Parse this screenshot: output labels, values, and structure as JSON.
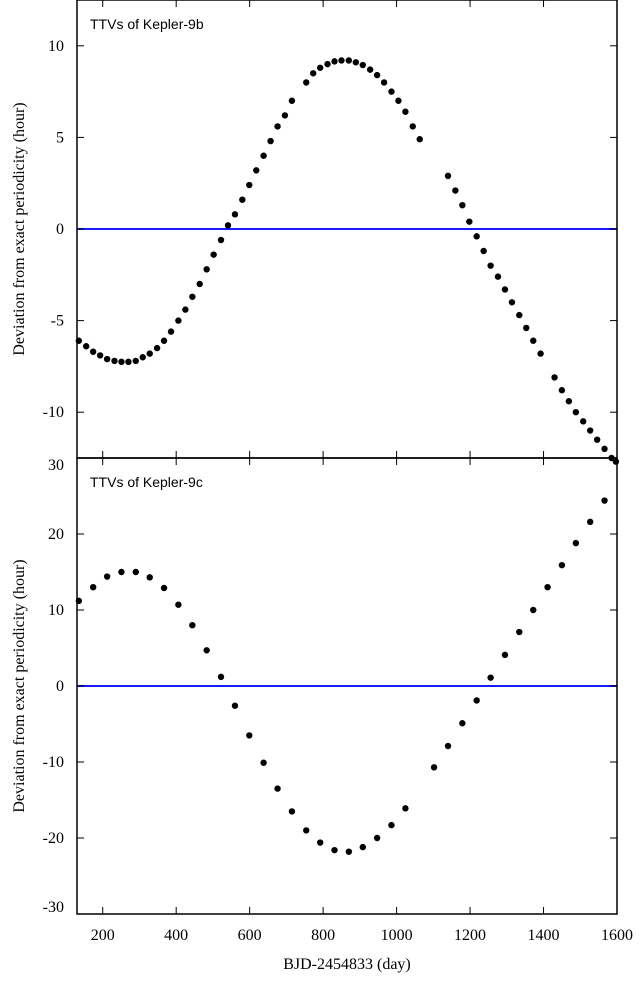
{
  "chart_data": {
    "type": "scatter",
    "xlabel": "BJD-2454833 (day)",
    "xlim": [
      130,
      1600
    ],
    "xticks": [
      200,
      400,
      600,
      800,
      1000,
      1200,
      1400,
      1600
    ],
    "panels": [
      {
        "title": "TTVs of Kepler-9b",
        "ylabel": "Deviation from exact periodicity (hour)",
        "ylim": [
          -12.5,
          12.5
        ],
        "yticks": [
          -10,
          -5,
          0,
          5,
          10
        ],
        "ytick_labels": [
          "-10",
          "-5",
          "0",
          "5",
          "10"
        ],
        "reference_line": 0,
        "reference_color": "#1a1aff",
        "marker_color": "#000000",
        "x": [
          135,
          155,
          174,
          193,
          212,
          232,
          251,
          270,
          290,
          309,
          328,
          348,
          367,
          386,
          406,
          425,
          444,
          464,
          483,
          502,
          522,
          541,
          560,
          580,
          599,
          618,
          638,
          657,
          676,
          696,
          715,
          754,
          773,
          792,
          812,
          831,
          850,
          870,
          889,
          908,
          928,
          947,
          966,
          986,
          1005,
          1024,
          1044,
          1063,
          1140,
          1160,
          1179,
          1198,
          1218,
          1237,
          1256,
          1276,
          1295,
          1314,
          1334,
          1353,
          1372,
          1392,
          1430,
          1450,
          1469,
          1488,
          1508,
          1527,
          1546,
          1566,
          1585,
          1597
        ],
        "y": [
          -6.1,
          -6.4,
          -6.7,
          -6.9,
          -7.1,
          -7.2,
          -7.25,
          -7.25,
          -7.2,
          -7.0,
          -6.8,
          -6.5,
          -6.1,
          -5.6,
          -5.0,
          -4.4,
          -3.7,
          -3.0,
          -2.2,
          -1.4,
          -0.6,
          0.2,
          0.8,
          1.6,
          2.4,
          3.2,
          4.0,
          4.8,
          5.6,
          6.2,
          7.0,
          8.0,
          8.5,
          8.8,
          9.0,
          9.15,
          9.2,
          9.2,
          9.1,
          8.95,
          8.7,
          8.4,
          8.0,
          7.5,
          7.0,
          6.4,
          5.6,
          4.9,
          2.9,
          2.1,
          1.3,
          0.4,
          -0.4,
          -1.2,
          -2.0,
          -2.6,
          -3.3,
          -4.0,
          -4.7,
          -5.4,
          -6.1,
          -6.8,
          -8.1,
          -8.8,
          -9.4,
          -10.0,
          -10.5,
          -11.0,
          -11.5,
          -12.0,
          -12.5,
          -12.7
        ]
      },
      {
        "title": "TTVs of Kepler-9c",
        "ylabel": "Deviation from exact periodicity (hour)",
        "ylim": [
          -30,
          30
        ],
        "yticks": [
          -30,
          -20,
          -10,
          0,
          10,
          20,
          30
        ],
        "ytick_labels": [
          "-30",
          "-20",
          "-10",
          "0",
          "10",
          "20",
          "30"
        ],
        "reference_line": 0,
        "reference_color": "#1a1aff",
        "marker_color": "#000000",
        "x": [
          135,
          174,
          212,
          251,
          290,
          328,
          367,
          406,
          444,
          483,
          522,
          560,
          599,
          638,
          676,
          715,
          754,
          792,
          831,
          870,
          908,
          947,
          986,
          1024,
          1102,
          1140,
          1179,
          1218,
          1256,
          1295,
          1334,
          1372,
          1411,
          1450,
          1488,
          1527,
          1566
        ],
        "y": [
          11.2,
          13.0,
          14.4,
          15.0,
          15.0,
          14.3,
          12.9,
          10.7,
          8.0,
          4.7,
          1.2,
          -2.6,
          -6.5,
          -10.1,
          -13.5,
          -16.5,
          -19.0,
          -20.6,
          -21.6,
          -21.8,
          -21.2,
          -20.0,
          -18.3,
          -16.1,
          -10.7,
          -7.9,
          -4.9,
          -1.9,
          1.1,
          4.1,
          7.1,
          10.0,
          13.0,
          15.9,
          18.8,
          21.6,
          24.4
        ]
      }
    ]
  }
}
